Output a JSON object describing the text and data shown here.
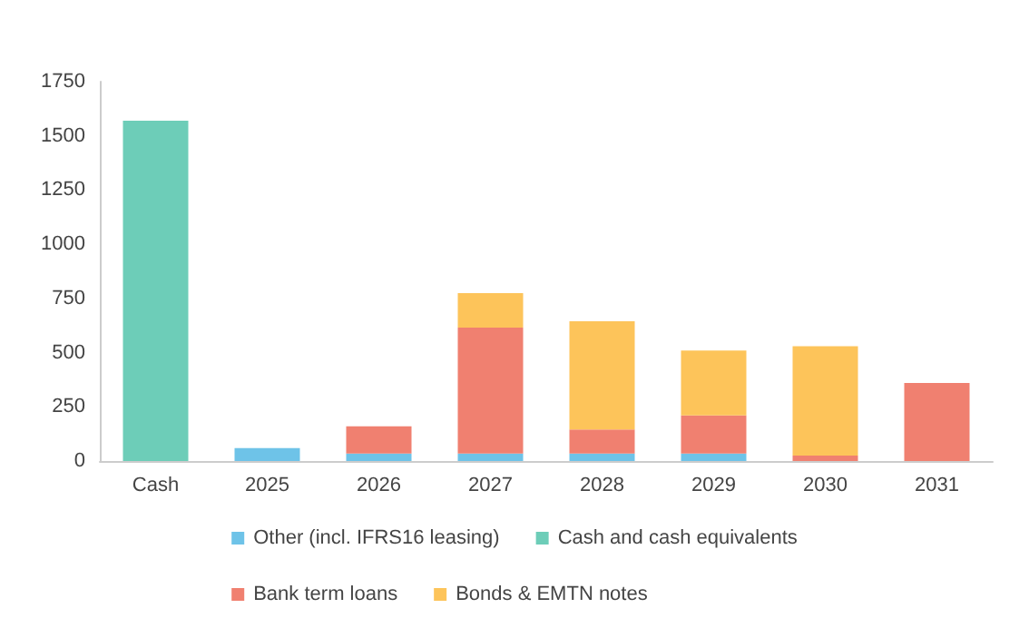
{
  "chart_data": {
    "type": "bar",
    "stacked": true,
    "categories": [
      "Cash",
      "2025",
      "2026",
      "2027",
      "2028",
      "2029",
      "2030",
      "2031"
    ],
    "series": [
      {
        "name": "Other (incl. IFRS16 leasing)",
        "color": "#6ec3e8",
        "values": [
          null,
          60,
          35,
          35,
          35,
          35,
          null,
          null
        ]
      },
      {
        "name": "Cash and cash equivalents",
        "color": "#6dcdb8",
        "values": [
          1570,
          null,
          null,
          null,
          null,
          null,
          null,
          null
        ]
      },
      {
        "name": "Bank term loans",
        "color": "#f08070",
        "values": [
          null,
          null,
          125,
          580,
          110,
          175,
          25,
          360
        ]
      },
      {
        "name": "Bonds & EMTN notes",
        "color": "#fdc45a",
        "values": [
          null,
          null,
          null,
          160,
          500,
          300,
          505,
          null
        ]
      }
    ],
    "ylim": [
      0,
      1750
    ],
    "yticks": [
      0,
      250,
      500,
      750,
      1000,
      1250,
      1500,
      1750
    ],
    "grid": false,
    "legend": "bottom"
  }
}
